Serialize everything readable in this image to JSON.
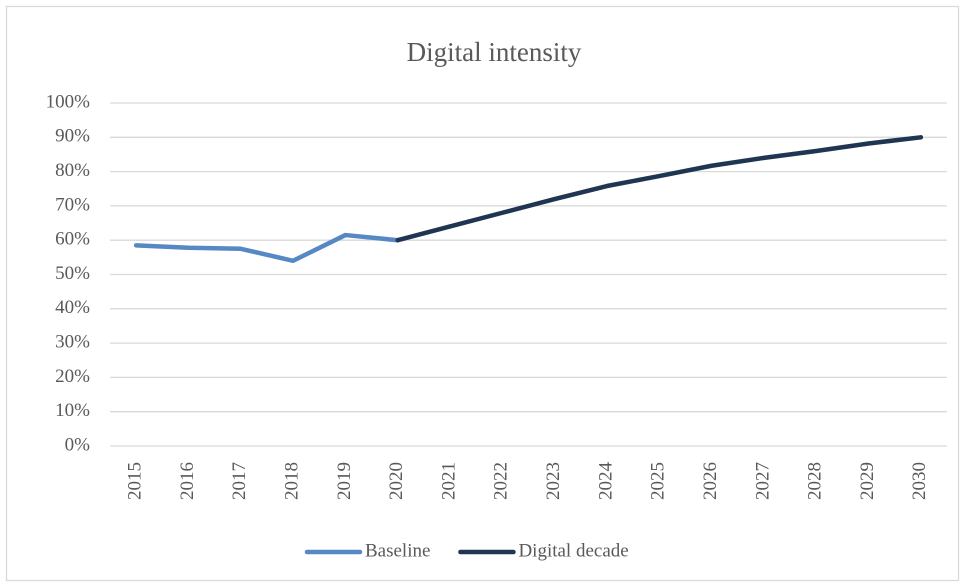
{
  "chart_data": {
    "type": "line",
    "title": "Digital intensity",
    "categories": [
      "2015",
      "2016",
      "2017",
      "2018",
      "2019",
      "2020",
      "2021",
      "2022",
      "2023",
      "2024",
      "2025",
      "2026",
      "2027",
      "2028",
      "2029",
      "2030"
    ],
    "series": [
      {
        "name": "Baseline",
        "color": "#5688c4",
        "values": [
          58.5,
          57.8,
          57.5,
          54,
          61.5,
          60,
          null,
          null,
          null,
          null,
          null,
          null,
          null,
          null,
          null,
          null
        ]
      },
      {
        "name": "Digital decade",
        "color": "#1f3552",
        "values": [
          null,
          null,
          null,
          null,
          null,
          60,
          64,
          68,
          72,
          75.8,
          78.7,
          81.7,
          84,
          86,
          88.2,
          90
        ]
      }
    ],
    "ylim": [
      0,
      100
    ],
    "yticks": [
      {
        "value": 0,
        "label": "0%"
      },
      {
        "value": 10,
        "label": "10%"
      },
      {
        "value": 20,
        "label": "20%"
      },
      {
        "value": 30,
        "label": "30%"
      },
      {
        "value": 40,
        "label": "40%"
      },
      {
        "value": 50,
        "label": "50%"
      },
      {
        "value": 60,
        "label": "60%"
      },
      {
        "value": 70,
        "label": "70%"
      },
      {
        "value": 80,
        "label": "80%"
      },
      {
        "value": 90,
        "label": "90%"
      },
      {
        "value": 100,
        "label": "100%"
      }
    ],
    "grid": true,
    "legend": "bottom"
  }
}
